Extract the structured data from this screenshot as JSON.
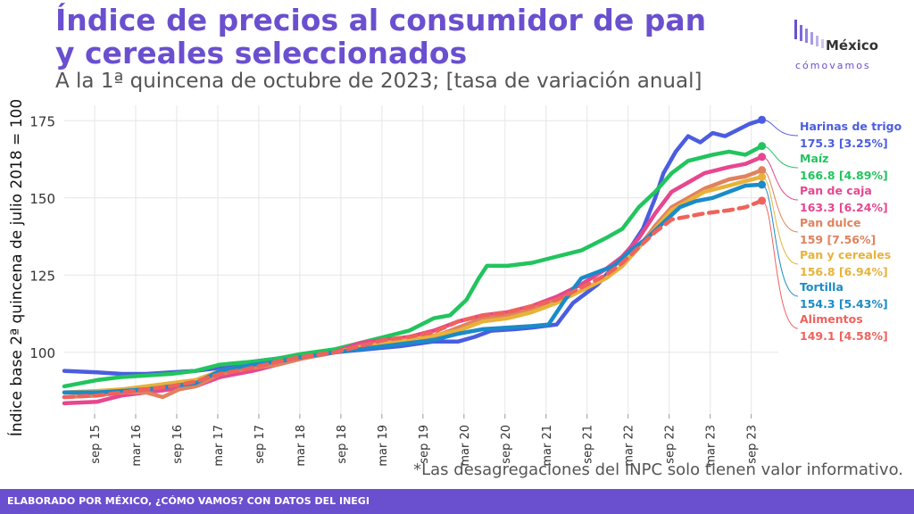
{
  "title": "Índice de precios al consumidor de pan y cereales seleccionados",
  "subtitle": "A la 1ª quincena de octubre de 2023; [tasa de variación anual]",
  "logo": {
    "line1": "México",
    "line2": "cómovamos"
  },
  "note": "*Las desagregaciones del INPC solo tienen valor informativo.",
  "footer": "ELABORADO POR MÉXICO, ¿CÓMO VAMOS? CON DATOS DEL INEGI",
  "chart_data": {
    "type": "line",
    "ylabel": "Índice base 2ª quincena de julio 2018 = 100",
    "ylim": [
      80,
      180
    ],
    "yticks": [
      100,
      125,
      150,
      175
    ],
    "xlim": [
      2015.3,
      2024.0
    ],
    "x_ticks": [
      {
        "label": "sep 15",
        "x": 2015.67
      },
      {
        "label": "mar 16",
        "x": 2016.17
      },
      {
        "label": "sep 16",
        "x": 2016.67
      },
      {
        "label": "mar 17",
        "x": 2017.17
      },
      {
        "label": "sep 17",
        "x": 2017.67
      },
      {
        "label": "mar 18",
        "x": 2018.17
      },
      {
        "label": "sep 18",
        "x": 2018.67
      },
      {
        "label": "mar 19",
        "x": 2019.17
      },
      {
        "label": "sep 19",
        "x": 2019.67
      },
      {
        "label": "mar 20",
        "x": 2020.17
      },
      {
        "label": "sep 20",
        "x": 2020.67
      },
      {
        "label": "mar 21",
        "x": 2021.17
      },
      {
        "label": "sep 21",
        "x": 2021.67
      },
      {
        "label": "mar 22",
        "x": 2022.17
      },
      {
        "label": "sep 22",
        "x": 2022.67
      },
      {
        "label": "mar 23",
        "x": 2023.17
      },
      {
        "label": "sep 23",
        "x": 2023.67
      }
    ],
    "grid": true,
    "legend": "direct labels at line ends (right)",
    "series": [
      {
        "name": "Harinas de trigo",
        "value_label": "175.3 [3.25%]",
        "color": "#4a5de0",
        "dashed": false,
        "points": [
          [
            2015.3,
            94
          ],
          [
            2015.7,
            93.5
          ],
          [
            2016.0,
            93
          ],
          [
            2016.3,
            93
          ],
          [
            2016.6,
            93.5
          ],
          [
            2016.9,
            94
          ],
          [
            2017.2,
            95
          ],
          [
            2017.6,
            97
          ],
          [
            2017.9,
            98
          ],
          [
            2018.2,
            99
          ],
          [
            2018.6,
            100
          ],
          [
            2019.0,
            101
          ],
          [
            2019.4,
            102
          ],
          [
            2019.8,
            103.5
          ],
          [
            2020.1,
            103.5
          ],
          [
            2020.3,
            105
          ],
          [
            2020.5,
            107
          ],
          [
            2020.8,
            107.5
          ],
          [
            2021.0,
            108
          ],
          [
            2021.3,
            109
          ],
          [
            2021.5,
            116
          ],
          [
            2021.8,
            122
          ],
          [
            2022.0,
            128
          ],
          [
            2022.2,
            134
          ],
          [
            2022.35,
            140
          ],
          [
            2022.5,
            150
          ],
          [
            2022.6,
            158
          ],
          [
            2022.75,
            165
          ],
          [
            2022.9,
            170
          ],
          [
            2023.05,
            168
          ],
          [
            2023.2,
            171
          ],
          [
            2023.35,
            170
          ],
          [
            2023.5,
            172
          ],
          [
            2023.65,
            174
          ],
          [
            2023.8,
            175.3
          ]
        ]
      },
      {
        "name": "Maíz",
        "value_label": "166.8 [4.89%]",
        "color": "#22c45e",
        "dashed": false,
        "points": [
          [
            2015.3,
            89
          ],
          [
            2015.7,
            91
          ],
          [
            2016.0,
            92
          ],
          [
            2016.3,
            92.5
          ],
          [
            2016.6,
            93
          ],
          [
            2016.9,
            94
          ],
          [
            2017.2,
            96
          ],
          [
            2017.6,
            97
          ],
          [
            2017.9,
            98
          ],
          [
            2018.2,
            99.5
          ],
          [
            2018.6,
            101
          ],
          [
            2018.9,
            103
          ],
          [
            2019.2,
            105
          ],
          [
            2019.5,
            107
          ],
          [
            2019.8,
            111
          ],
          [
            2020.0,
            112
          ],
          [
            2020.2,
            117
          ],
          [
            2020.35,
            124
          ],
          [
            2020.45,
            128
          ],
          [
            2020.7,
            128
          ],
          [
            2021.0,
            129
          ],
          [
            2021.3,
            131
          ],
          [
            2021.6,
            133
          ],
          [
            2021.9,
            137
          ],
          [
            2022.1,
            140
          ],
          [
            2022.3,
            147
          ],
          [
            2022.5,
            152
          ],
          [
            2022.7,
            158
          ],
          [
            2022.9,
            162
          ],
          [
            2023.2,
            164
          ],
          [
            2023.4,
            165
          ],
          [
            2023.6,
            164
          ],
          [
            2023.8,
            166.8
          ]
        ]
      },
      {
        "name": "Pan de caja",
        "value_label": "163.3 [6.24%]",
        "color": "#e6478f",
        "dashed": false,
        "points": [
          [
            2015.3,
            83.5
          ],
          [
            2015.7,
            84
          ],
          [
            2016.0,
            86
          ],
          [
            2016.3,
            87
          ],
          [
            2016.6,
            88
          ],
          [
            2016.9,
            89
          ],
          [
            2017.2,
            92
          ],
          [
            2017.6,
            94
          ],
          [
            2017.9,
            96
          ],
          [
            2018.2,
            98
          ],
          [
            2018.6,
            100
          ],
          [
            2018.9,
            103
          ],
          [
            2019.2,
            104
          ],
          [
            2019.5,
            105
          ],
          [
            2019.8,
            107
          ],
          [
            2020.1,
            110
          ],
          [
            2020.4,
            112
          ],
          [
            2020.7,
            113
          ],
          [
            2021.0,
            115
          ],
          [
            2021.3,
            118
          ],
          [
            2021.6,
            122
          ],
          [
            2021.9,
            127
          ],
          [
            2022.1,
            131
          ],
          [
            2022.3,
            137
          ],
          [
            2022.5,
            145
          ],
          [
            2022.7,
            152
          ],
          [
            2022.9,
            155
          ],
          [
            2023.1,
            158
          ],
          [
            2023.4,
            160
          ],
          [
            2023.6,
            161
          ],
          [
            2023.8,
            163.3
          ]
        ]
      },
      {
        "name": "Pan dulce",
        "value_label": "159 [7.56%]",
        "color": "#e0825e",
        "dashed": false,
        "points": [
          [
            2015.3,
            85.5
          ],
          [
            2015.7,
            86
          ],
          [
            2016.0,
            87
          ],
          [
            2016.3,
            87
          ],
          [
            2016.5,
            85.5
          ],
          [
            2016.7,
            88
          ],
          [
            2016.9,
            89
          ],
          [
            2017.2,
            93
          ],
          [
            2017.6,
            95
          ],
          [
            2017.9,
            96
          ],
          [
            2018.2,
            98
          ],
          [
            2018.6,
            100
          ],
          [
            2018.9,
            102
          ],
          [
            2019.2,
            103
          ],
          [
            2019.5,
            104
          ],
          [
            2019.8,
            105
          ],
          [
            2020.1,
            108
          ],
          [
            2020.4,
            111
          ],
          [
            2020.7,
            112
          ],
          [
            2021.0,
            114
          ],
          [
            2021.3,
            117
          ],
          [
            2021.6,
            120
          ],
          [
            2021.9,
            124
          ],
          [
            2022.1,
            128
          ],
          [
            2022.3,
            134
          ],
          [
            2022.5,
            141
          ],
          [
            2022.7,
            147
          ],
          [
            2022.9,
            150
          ],
          [
            2023.1,
            153
          ],
          [
            2023.4,
            156
          ],
          [
            2023.6,
            157
          ],
          [
            2023.8,
            159
          ]
        ]
      },
      {
        "name": "Pan y cereales",
        "value_label": "156.8 [6.94%]",
        "color": "#e8b23a",
        "dashed": false,
        "points": [
          [
            2015.3,
            87
          ],
          [
            2015.7,
            87.5
          ],
          [
            2016.0,
            88
          ],
          [
            2016.3,
            89
          ],
          [
            2016.6,
            90
          ],
          [
            2016.9,
            91
          ],
          [
            2017.2,
            94
          ],
          [
            2017.6,
            96
          ],
          [
            2017.9,
            97
          ],
          [
            2018.2,
            98.5
          ],
          [
            2018.6,
            100
          ],
          [
            2018.9,
            101.5
          ],
          [
            2019.2,
            103
          ],
          [
            2019.5,
            104
          ],
          [
            2019.8,
            105.5
          ],
          [
            2020.1,
            107
          ],
          [
            2020.4,
            110
          ],
          [
            2020.7,
            111
          ],
          [
            2021.0,
            113
          ],
          [
            2021.3,
            116
          ],
          [
            2021.6,
            120
          ],
          [
            2021.9,
            124
          ],
          [
            2022.1,
            128
          ],
          [
            2022.3,
            134
          ],
          [
            2022.5,
            140
          ],
          [
            2022.7,
            146
          ],
          [
            2022.9,
            149
          ],
          [
            2023.1,
            152
          ],
          [
            2023.4,
            154
          ],
          [
            2023.6,
            155.5
          ],
          [
            2023.8,
            156.8
          ]
        ]
      },
      {
        "name": "Tortilla",
        "value_label": "154.3 [5.43%]",
        "color": "#1a8bc9",
        "dashed": false,
        "points": [
          [
            2015.3,
            87
          ],
          [
            2015.7,
            87
          ],
          [
            2016.0,
            87.5
          ],
          [
            2016.3,
            88
          ],
          [
            2016.6,
            89
          ],
          [
            2016.9,
            90
          ],
          [
            2017.2,
            94
          ],
          [
            2017.6,
            96
          ],
          [
            2017.9,
            97
          ],
          [
            2018.2,
            98.5
          ],
          [
            2018.6,
            100
          ],
          [
            2018.9,
            101
          ],
          [
            2019.2,
            102
          ],
          [
            2019.5,
            103
          ],
          [
            2019.8,
            104
          ],
          [
            2020.1,
            106
          ],
          [
            2020.4,
            107.5
          ],
          [
            2020.7,
            108
          ],
          [
            2021.0,
            108.5
          ],
          [
            2021.2,
            109
          ],
          [
            2021.4,
            117
          ],
          [
            2021.6,
            124
          ],
          [
            2021.8,
            126
          ],
          [
            2022.0,
            128
          ],
          [
            2022.2,
            133
          ],
          [
            2022.4,
            137
          ],
          [
            2022.6,
            142
          ],
          [
            2022.8,
            147
          ],
          [
            2023.0,
            149
          ],
          [
            2023.2,
            150
          ],
          [
            2023.4,
            152
          ],
          [
            2023.6,
            154
          ],
          [
            2023.8,
            154.3
          ]
        ]
      },
      {
        "name": "Alimentos",
        "value_label": "149.1 [4.58%]",
        "color": "#f0625c",
        "dashed": true,
        "points": [
          [
            2015.3,
            85.5
          ],
          [
            2015.7,
            86
          ],
          [
            2016.0,
            87
          ],
          [
            2016.3,
            88
          ],
          [
            2016.6,
            89
          ],
          [
            2016.9,
            90.5
          ],
          [
            2017.2,
            93
          ],
          [
            2017.6,
            95
          ],
          [
            2017.9,
            97
          ],
          [
            2018.2,
            98.5
          ],
          [
            2018.6,
            100
          ],
          [
            2018.9,
            102
          ],
          [
            2019.2,
            104
          ],
          [
            2019.5,
            105
          ],
          [
            2019.8,
            106.5
          ],
          [
            2020.1,
            110
          ],
          [
            2020.4,
            112
          ],
          [
            2020.7,
            113
          ],
          [
            2021.0,
            115
          ],
          [
            2021.3,
            117
          ],
          [
            2021.6,
            121
          ],
          [
            2021.9,
            125
          ],
          [
            2022.1,
            129
          ],
          [
            2022.3,
            134
          ],
          [
            2022.5,
            139
          ],
          [
            2022.7,
            143
          ],
          [
            2022.9,
            144
          ],
          [
            2023.1,
            145
          ],
          [
            2023.4,
            146
          ],
          [
            2023.6,
            147
          ],
          [
            2023.8,
            149.1
          ]
        ]
      }
    ]
  }
}
